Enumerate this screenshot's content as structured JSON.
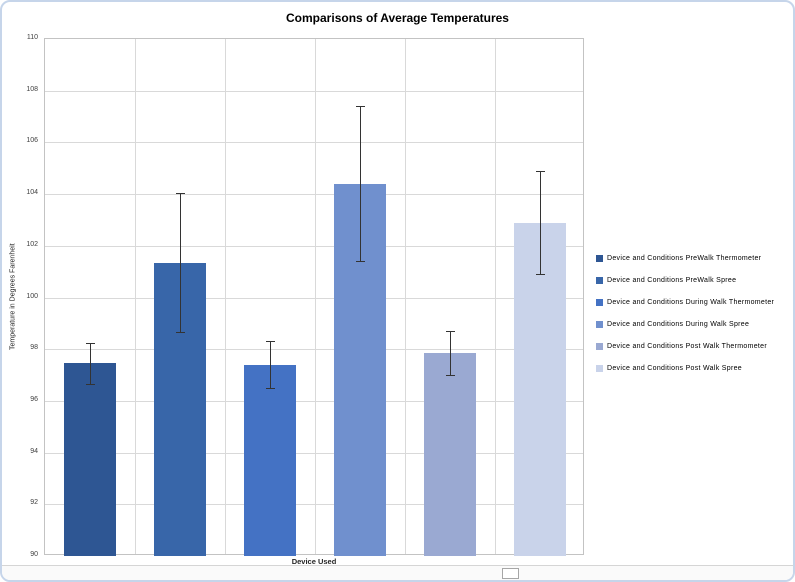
{
  "window": {
    "border_color": "#C6D5EA"
  },
  "chart_data": {
    "type": "bar",
    "title": "Comparisons of Average Temperatures",
    "xlabel": "Device Used",
    "ylabel": "Temperature in Degrees Farenheit",
    "ylim": [
      90,
      110
    ],
    "ytick_step": 2,
    "yticks": [
      90,
      92,
      94,
      96,
      98,
      100,
      102,
      104,
      106,
      108,
      110
    ],
    "grid": true,
    "legend_position": "right",
    "error_bars": true,
    "series": [
      {
        "name": "Device and Conditions PreWalk Thermometer",
        "value": 97.45,
        "error": 0.8,
        "color": "#2E5693"
      },
      {
        "name": "Device and Conditions PreWalk Spree",
        "value": 101.35,
        "error": 2.7,
        "color": "#3866A9"
      },
      {
        "name": "Device and Conditions During Walk Thermometer",
        "value": 97.4,
        "error": 0.9,
        "color": "#4472C4"
      },
      {
        "name": "Device and Conditions During Walk Spree",
        "value": 104.4,
        "error": 3.0,
        "color": "#7090CE"
      },
      {
        "name": "Device and Conditions Post Walk Thermometer",
        "value": 97.85,
        "error": 0.85,
        "color": "#9AA9D2"
      },
      {
        "name": "Device and Conditions Post Walk Spree",
        "value": 102.9,
        "error": 2.0,
        "color": "#C9D3EA"
      }
    ]
  }
}
